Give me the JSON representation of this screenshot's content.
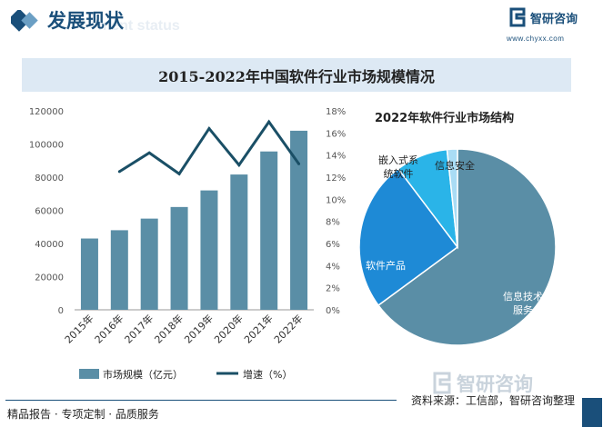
{
  "header": {
    "title": "发展现状",
    "ghost_text": "ment status",
    "logo_text": "智研咨询",
    "logo_url": "www.chyxx.com"
  },
  "main_title": "2015-2022年中国软件行业市场规模情况",
  "chart_data": [
    {
      "type": "bar",
      "title": "",
      "categories": [
        "2015年",
        "2016年",
        "2017年",
        "2018年",
        "2019年",
        "2020年",
        "2021年",
        "2022年"
      ],
      "series": [
        {
          "name": "市场规模（亿元）",
          "type": "bar",
          "axis": "left",
          "color": "#5a8ea6",
          "values": [
            43000,
            48000,
            55000,
            62000,
            72000,
            81600,
            95500,
            108000
          ]
        },
        {
          "name": "增速（%）",
          "type": "line",
          "axis": "right",
          "color": "#1a4f66",
          "values": [
            null,
            12.5,
            14.2,
            12.3,
            16.4,
            13.1,
            17.0,
            13.2
          ]
        }
      ],
      "ylim_left": [
        0,
        120000
      ],
      "yticks_left": [
        "0",
        "20000",
        "40000",
        "60000",
        "80000",
        "100000",
        "120000"
      ],
      "ylim_right": [
        0,
        18
      ],
      "yticks_right": [
        "0%",
        "2%",
        "4%",
        "6%",
        "8%",
        "10%",
        "12%",
        "14%",
        "16%",
        "18%"
      ],
      "legend_position": "bottom",
      "grid": false
    },
    {
      "type": "pie",
      "title": "2022年软件行业市场结构",
      "labels": [
        "信息技术服务",
        "软件产品",
        "嵌入式系统软件",
        "信息安全"
      ],
      "label_lines": [
        [
          "信息技术",
          "服务"
        ],
        [
          "软件产品"
        ],
        [
          "嵌入式系",
          "统软件"
        ],
        [
          "信息安全"
        ]
      ],
      "values": [
        64.9,
        24.8,
        8.6,
        1.7
      ],
      "colors": [
        "#5a8ea6",
        "#1e8ad6",
        "#2ab4e8",
        "#a9dcf5"
      ]
    }
  ],
  "footer": {
    "left": "精品报告 · 专项定制 · 品质服务",
    "right": "资料来源：工信部，智研咨询整理",
    "watermark": "智研咨询"
  }
}
